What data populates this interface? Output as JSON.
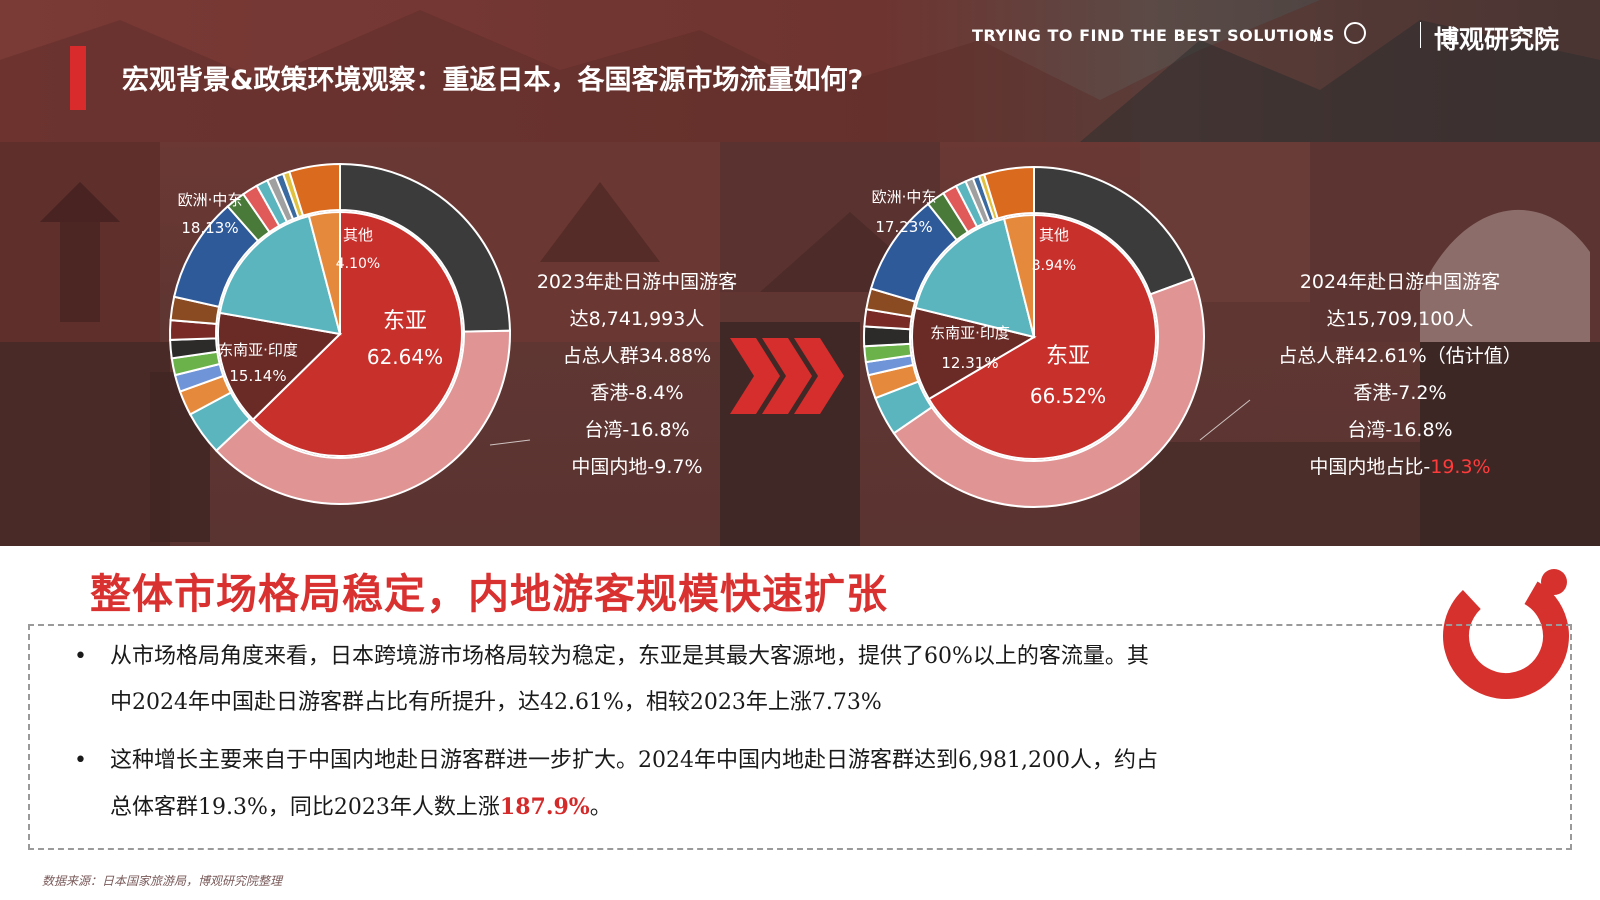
{
  "header": {
    "title": "宏观背景&政策环境观察：重返日本，各国客源市场流量如何?",
    "tagline": "TRYING TO FIND THE BEST SOLUTIONS",
    "separator": "/",
    "brand": "博观研究院",
    "logo_icon": "boguan-logo-icon"
  },
  "chart_data": [
    {
      "type": "pie",
      "title": "",
      "inner": {
        "slices": [
          {
            "label": "东亚",
            "value": 62.64,
            "display": "62.64%",
            "color": "#c8302c"
          },
          {
            "label": "东南亚·印度",
            "value": 15.14,
            "display": "15.14%",
            "color": "#6a2a26"
          },
          {
            "label": "欧洲·中东",
            "value": 18.13,
            "display": "18.13%",
            "color": "#5bb5be"
          },
          {
            "label": "其他",
            "value": 4.1,
            "display": "4.10%",
            "color": "#e58a3c"
          }
        ]
      },
      "outer": {
        "slices": [
          {
            "value": 20.0,
            "color": "#3b3b3b"
          },
          {
            "value": 31.0,
            "color": "#e09494"
          },
          {
            "value": 3.4,
            "color": "#5bb5be"
          },
          {
            "value": 1.9,
            "color": "#e58a3c"
          },
          {
            "value": 1.3,
            "color": "#6f95d8"
          },
          {
            "value": 1.3,
            "color": "#6cb24a"
          },
          {
            "value": 1.4,
            "color": "#2d2a2a"
          },
          {
            "value": 1.5,
            "color": "#7a2a26"
          },
          {
            "value": 1.8,
            "color": "#8a4a22"
          },
          {
            "value": 8.1,
            "color": "#2f5a9a"
          },
          {
            "value": 1.5,
            "color": "#4a7a3a"
          },
          {
            "value": 1.2,
            "color": "#e05a5a"
          },
          {
            "value": 0.9,
            "color": "#5bb5be"
          },
          {
            "value": 0.7,
            "color": "#a0a0a0"
          },
          {
            "value": 0.6,
            "color": "#3a6aa0"
          },
          {
            "value": 0.5,
            "color": "#e0c040"
          },
          {
            "value": 3.9,
            "color": "#d96a1e"
          }
        ]
      }
    },
    {
      "type": "pie",
      "title": "",
      "inner": {
        "slices": [
          {
            "label": "东亚",
            "value": 66.52,
            "display": "66.52%",
            "color": "#c8302c"
          },
          {
            "label": "东南亚·印度",
            "value": 12.31,
            "display": "12.31%",
            "color": "#6a2a26"
          },
          {
            "label": "欧洲·中东",
            "value": 17.23,
            "display": "17.23%",
            "color": "#5bb5be"
          },
          {
            "label": "其他",
            "value": 3.94,
            "display": "3.94%",
            "color": "#e58a3c"
          }
        ]
      },
      "outer": {
        "slices": [
          {
            "value": 15.6,
            "color": "#3b3b3b"
          },
          {
            "value": 37.0,
            "color": "#e09494"
          },
          {
            "value": 3.0,
            "color": "#5bb5be"
          },
          {
            "value": 1.8,
            "color": "#e58a3c"
          },
          {
            "value": 1.0,
            "color": "#6f95d8"
          },
          {
            "value": 1.2,
            "color": "#6cb24a"
          },
          {
            "value": 1.5,
            "color": "#2d2a2a"
          },
          {
            "value": 1.3,
            "color": "#7a2a26"
          },
          {
            "value": 1.6,
            "color": "#8a4a22"
          },
          {
            "value": 7.8,
            "color": "#2f5a9a"
          },
          {
            "value": 1.4,
            "color": "#4a7a3a"
          },
          {
            "value": 1.1,
            "color": "#e05a5a"
          },
          {
            "value": 0.8,
            "color": "#5bb5be"
          },
          {
            "value": 0.6,
            "color": "#a0a0a0"
          },
          {
            "value": 0.5,
            "color": "#3a6aa0"
          },
          {
            "value": 0.4,
            "color": "#e0c040"
          },
          {
            "value": 3.8,
            "color": "#d96a1e"
          }
        ]
      }
    }
  ],
  "stats_2023": {
    "lines": [
      "2023年赴日游中国游客",
      "达8,741,993人",
      "占总人群34.88%",
      "香港-8.4%",
      "台湾-16.8%",
      "中国内地-9.7%"
    ]
  },
  "stats_2024": {
    "lines": [
      "2024年赴日游中国游客",
      "达15,709,100人",
      "占总人群42.61%（估计值）",
      "香港-7.2%",
      "台湾-16.8%"
    ],
    "last_prefix": "中国内地占比-",
    "last_highlight": "19.3%"
  },
  "headline": "整体市场格局稳定，内地游客规模快速扩张",
  "bullets": [
    {
      "line1": "从市场格局角度来看，日本跨境游市场格局较为稳定，东亚是其最大客源地，提供了60%以上的客流量。其",
      "line2": "中2024年中国赴日游客群占比有所提升，达42.61%，相较2023年上涨7.73%"
    },
    {
      "line1": "这种增长主要来自于中国内地赴日游客群进一步扩大。2024年中国内地赴日游客群达到6,981,200人，约占",
      "line2_prefix": "总体客群19.3%，同比2023年人数上涨",
      "line2_highlight": "187.9%",
      "line2_suffix": "。"
    }
  ],
  "bullet_symbol": "•",
  "source": "数据来源：日本国家旅游局，博观研究院整理",
  "colors": {
    "accent": "#d93030",
    "header_bg": "#6e3430"
  }
}
